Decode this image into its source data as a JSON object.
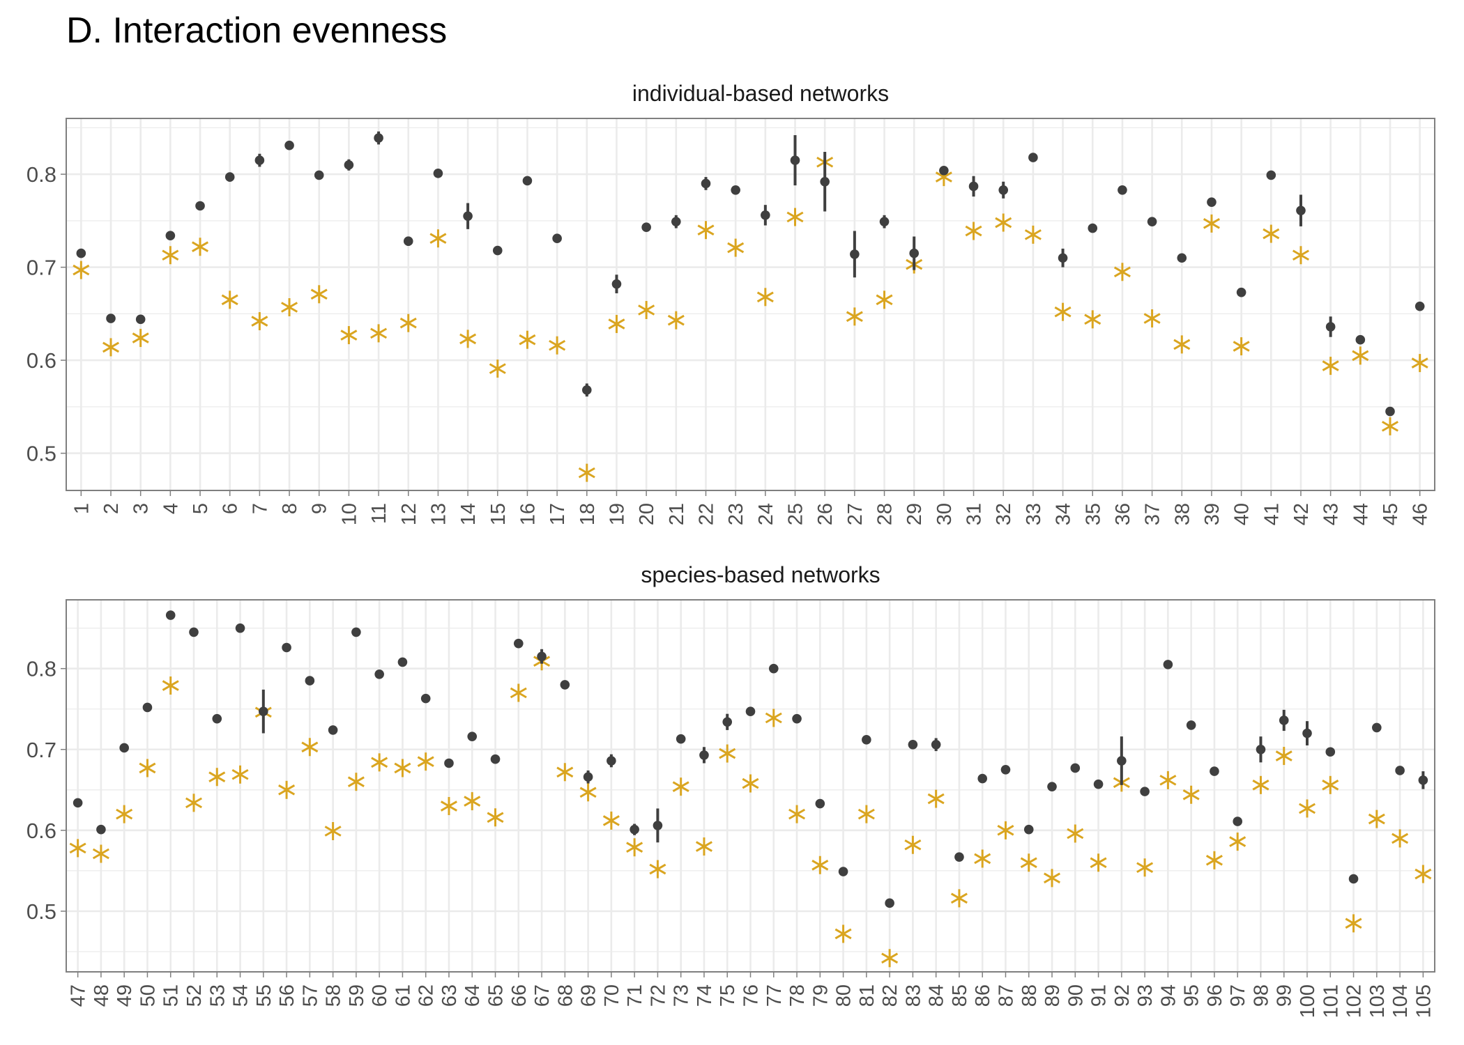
{
  "title": "D. Interaction evenness",
  "colors": {
    "point": "#3f3f3f",
    "star": "#DAA520",
    "grid": "#ebebeb",
    "panel_border": "#7f7f7f",
    "text": "#4d4d4d"
  },
  "chart_data": [
    {
      "type": "scatter",
      "panel_title": "individual-based networks",
      "ylim": [
        0.46,
        0.86
      ],
      "yticks": [
        0.5,
        0.6,
        0.7,
        0.8
      ],
      "ytick_labels": [
        "0.5",
        "0.6",
        "0.7",
        "0.8"
      ],
      "categories": [
        "1",
        "2",
        "3",
        "4",
        "5",
        "6",
        "7",
        "8",
        "9",
        "10",
        "11",
        "12",
        "13",
        "14",
        "15",
        "16",
        "17",
        "18",
        "19",
        "20",
        "21",
        "22",
        "23",
        "24",
        "25",
        "26",
        "27",
        "28",
        "29",
        "30",
        "31",
        "32",
        "33",
        "34",
        "35",
        "36",
        "37",
        "38",
        "39",
        "40",
        "41",
        "42",
        "43",
        "44",
        "45",
        "46"
      ],
      "grid": true,
      "series": [
        {
          "marker": "circle-with-errorbar",
          "values": [
            0.715,
            0.645,
            0.644,
            0.734,
            0.766,
            0.797,
            0.815,
            0.831,
            0.799,
            0.81,
            0.839,
            0.728,
            0.801,
            0.755,
            0.718,
            0.793,
            0.731,
            0.568,
            0.682,
            0.743,
            0.749,
            0.79,
            0.783,
            0.756,
            0.815,
            0.792,
            0.714,
            0.749,
            0.715,
            0.804,
            0.787,
            0.783,
            0.818,
            0.71,
            0.742,
            0.783,
            0.749,
            0.71,
            0.77,
            0.673,
            0.799,
            0.761,
            0.636,
            0.622,
            0.545,
            0.658
          ],
          "err": [
            0.002,
            0.002,
            0.002,
            0.003,
            0.002,
            0.005,
            0.007,
            0.002,
            0.002,
            0.006,
            0.007,
            0.005,
            0.002,
            0.014,
            0.002,
            0.002,
            0.002,
            0.007,
            0.01,
            0.002,
            0.007,
            0.007,
            0.002,
            0.011,
            0.027,
            0.032,
            0.025,
            0.007,
            0.018,
            0.004,
            0.011,
            0.009,
            0.004,
            0.01,
            0.002,
            0.002,
            0.002,
            0.002,
            0.004,
            0.002,
            0.002,
            0.017,
            0.011,
            0.002,
            0.003,
            0.002
          ]
        },
        {
          "marker": "asterisk",
          "values": [
            0.697,
            0.614,
            0.624,
            0.713,
            0.722,
            0.665,
            0.642,
            0.657,
            0.671,
            0.627,
            0.629,
            0.64,
            0.731,
            0.623,
            0.591,
            0.622,
            0.616,
            0.479,
            0.639,
            0.654,
            0.643,
            0.74,
            0.721,
            0.668,
            0.754,
            0.813,
            0.647,
            0.665,
            0.703,
            0.797,
            0.739,
            0.748,
            0.735,
            0.652,
            0.644,
            0.695,
            0.645,
            0.617,
            0.747,
            0.615,
            0.736,
            0.713,
            0.594,
            0.605,
            0.529,
            0.597
          ]
        }
      ]
    },
    {
      "type": "scatter",
      "panel_title": "species-based networks",
      "ylim": [
        0.425,
        0.885
      ],
      "yticks": [
        0.5,
        0.6,
        0.7,
        0.8
      ],
      "ytick_labels": [
        "0.5",
        "0.6",
        "0.7",
        "0.8"
      ],
      "categories": [
        "47",
        "48",
        "49",
        "50",
        "51",
        "52",
        "53",
        "54",
        "55",
        "56",
        "57",
        "58",
        "59",
        "60",
        "61",
        "62",
        "63",
        "64",
        "65",
        "66",
        "67",
        "68",
        "69",
        "70",
        "71",
        "72",
        "73",
        "74",
        "75",
        "76",
        "77",
        "78",
        "79",
        "80",
        "81",
        "82",
        "83",
        "84",
        "85",
        "86",
        "87",
        "88",
        "89",
        "90",
        "91",
        "92",
        "93",
        "94",
        "95",
        "96",
        "97",
        "98",
        "99",
        "100",
        "101",
        "102",
        "103",
        "104",
        "105"
      ],
      "grid": true,
      "series": [
        {
          "marker": "circle-with-errorbar",
          "values": [
            0.634,
            0.601,
            0.702,
            0.752,
            0.866,
            0.845,
            0.738,
            0.85,
            0.747,
            0.826,
            0.785,
            0.724,
            0.845,
            0.793,
            0.808,
            0.763,
            0.683,
            0.716,
            0.688,
            0.831,
            0.815,
            0.78,
            0.666,
            0.686,
            0.601,
            0.606,
            0.713,
            0.693,
            0.734,
            0.747,
            0.8,
            0.738,
            0.633,
            0.549,
            0.712,
            0.51,
            0.706,
            0.706,
            0.567,
            0.664,
            0.675,
            0.601,
            0.654,
            0.677,
            0.657,
            0.686,
            0.648,
            0.805,
            0.73,
            0.673,
            0.611,
            0.7,
            0.736,
            0.72,
            0.697,
            0.54,
            0.727,
            0.674,
            0.662
          ],
          "err": [
            0.002,
            0.002,
            0.002,
            0.002,
            0.002,
            0.002,
            0.002,
            0.002,
            0.027,
            0.002,
            0.002,
            0.002,
            0.002,
            0.002,
            0.002,
            0.002,
            0.002,
            0.002,
            0.002,
            0.002,
            0.009,
            0.002,
            0.008,
            0.008,
            0.007,
            0.021,
            0.002,
            0.01,
            0.01,
            0.002,
            0.002,
            0.002,
            0.002,
            0.002,
            0.002,
            0.002,
            0.002,
            0.008,
            0.002,
            0.002,
            0.002,
            0.002,
            0.002,
            0.002,
            0.002,
            0.03,
            0.002,
            0.002,
            0.002,
            0.002,
            0.002,
            0.016,
            0.013,
            0.015,
            0.002,
            0.002,
            0.002,
            0.002,
            0.011
          ]
        },
        {
          "marker": "asterisk",
          "values": [
            0.578,
            0.571,
            0.62,
            0.677,
            0.779,
            0.634,
            0.666,
            0.669,
            0.746,
            0.65,
            0.703,
            0.599,
            0.66,
            0.684,
            0.677,
            0.685,
            0.63,
            0.636,
            0.616,
            0.77,
            0.809,
            0.672,
            0.647,
            0.612,
            0.579,
            0.552,
            0.654,
            0.58,
            0.695,
            0.658,
            0.739,
            0.62,
            0.557,
            0.472,
            0.62,
            0.442,
            0.582,
            0.639,
            0.516,
            0.565,
            0.6,
            0.56,
            0.541,
            0.596,
            0.56,
            0.659,
            0.554,
            0.662,
            0.644,
            0.563,
            0.586,
            0.656,
            0.692,
            0.627,
            0.656,
            0.485,
            0.614,
            0.59,
            0.546
          ]
        }
      ]
    }
  ]
}
